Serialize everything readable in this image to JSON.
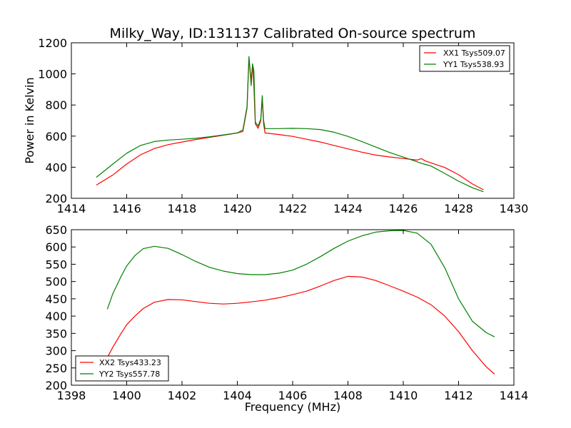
{
  "chart_data": [
    {
      "type": "line",
      "title": "Milky_Way, ID:131137 Calibrated On-source spectrum",
      "xlabel": "",
      "ylabel": "Power in Kelvin",
      "xlim": [
        1414,
        1430
      ],
      "ylim": [
        200,
        1200
      ],
      "xticks": [
        "1414",
        "1416",
        "1418",
        "1420",
        "1422",
        "1424",
        "1426",
        "1428",
        "1430"
      ],
      "yticks": [
        "200",
        "400",
        "600",
        "800",
        "1000",
        "1200"
      ],
      "grid": false,
      "legend": "top-right",
      "series": [
        {
          "name": "XX1 Tsys509.07",
          "color": "#ff0000",
          "x": [
            1414.9,
            1415.5,
            1416.0,
            1416.5,
            1417.0,
            1417.5,
            1418.0,
            1418.5,
            1419.0,
            1419.5,
            1420.0,
            1420.2,
            1420.35,
            1420.42,
            1420.5,
            1420.55,
            1420.6,
            1420.65,
            1420.75,
            1420.85,
            1420.9,
            1420.95,
            1421.0,
            1421.5,
            1422.0,
            1422.5,
            1423.0,
            1423.5,
            1424.0,
            1424.5,
            1425.0,
            1425.5,
            1426.0,
            1426.5,
            1426.65,
            1426.8,
            1427.0,
            1427.5,
            1428.0,
            1428.5,
            1428.9
          ],
          "values": [
            285,
            350,
            420,
            480,
            520,
            545,
            562,
            578,
            592,
            606,
            620,
            630,
            780,
            1100,
            960,
            1060,
            920,
            680,
            650,
            700,
            840,
            680,
            620,
            610,
            598,
            580,
            562,
            540,
            518,
            497,
            478,
            466,
            456,
            446,
            455,
            440,
            428,
            398,
            352,
            292,
            255
          ]
        },
        {
          "name": "YY1 Tsys538.93",
          "color": "#008000",
          "x": [
            1414.9,
            1415.5,
            1416.0,
            1416.5,
            1417.0,
            1417.5,
            1418.0,
            1418.5,
            1419.0,
            1419.5,
            1420.0,
            1420.2,
            1420.35,
            1420.42,
            1420.5,
            1420.55,
            1420.6,
            1420.65,
            1420.75,
            1420.85,
            1420.9,
            1420.95,
            1421.0,
            1421.5,
            1422.0,
            1422.5,
            1423.0,
            1423.5,
            1424.0,
            1424.5,
            1425.0,
            1425.5,
            1426.0,
            1426.5,
            1426.65,
            1426.8,
            1427.0,
            1427.5,
            1428.0,
            1428.5,
            1428.9
          ],
          "values": [
            335,
            420,
            490,
            540,
            565,
            575,
            580,
            586,
            596,
            608,
            620,
            640,
            790,
            1112,
            925,
            1065,
            1020,
            690,
            665,
            710,
            860,
            700,
            648,
            648,
            650,
            648,
            642,
            625,
            598,
            565,
            530,
            495,
            465,
            435,
            425,
            418,
            408,
            360,
            310,
            268,
            242
          ]
        }
      ]
    },
    {
      "type": "line",
      "title": "",
      "xlabel": "Frequency (MHz)",
      "ylabel": "",
      "xlim": [
        1398,
        1414
      ],
      "ylim": [
        200,
        650
      ],
      "xticks": [
        "1398",
        "1400",
        "1402",
        "1404",
        "1406",
        "1408",
        "1410",
        "1412",
        "1414"
      ],
      "yticks": [
        "200",
        "250",
        "300",
        "350",
        "400",
        "450",
        "500",
        "550",
        "600",
        "650"
      ],
      "grid": false,
      "legend": "bottom-left",
      "series": [
        {
          "name": "XX2 Tsys433.23",
          "color": "#ff0000",
          "x": [
            1399.3,
            1399.5,
            1399.8,
            1400.0,
            1400.3,
            1400.6,
            1401.0,
            1401.5,
            1402.0,
            1402.5,
            1403.0,
            1403.5,
            1404.0,
            1404.5,
            1405.0,
            1405.5,
            1406.0,
            1406.5,
            1407.0,
            1407.5,
            1408.0,
            1408.5,
            1409.0,
            1409.5,
            1410.0,
            1410.5,
            1411.0,
            1411.5,
            1412.0,
            1412.5,
            1413.0,
            1413.3
          ],
          "values": [
            280,
            310,
            350,
            375,
            400,
            422,
            440,
            448,
            447,
            442,
            437,
            435,
            437,
            441,
            446,
            453,
            462,
            472,
            487,
            503,
            515,
            513,
            503,
            488,
            472,
            455,
            433,
            400,
            355,
            300,
            253,
            232
          ]
        },
        {
          "name": "YY2 Tsys557.78",
          "color": "#008000",
          "x": [
            1399.3,
            1399.5,
            1399.8,
            1400.0,
            1400.3,
            1400.6,
            1401.0,
            1401.5,
            1402.0,
            1402.5,
            1403.0,
            1403.5,
            1404.0,
            1404.5,
            1405.0,
            1405.5,
            1406.0,
            1406.5,
            1407.0,
            1407.5,
            1408.0,
            1408.5,
            1409.0,
            1409.5,
            1410.0,
            1410.5,
            1411.0,
            1411.5,
            1412.0,
            1412.5,
            1413.0,
            1413.3
          ],
          "values": [
            420,
            465,
            515,
            545,
            575,
            595,
            602,
            596,
            578,
            558,
            541,
            530,
            523,
            520,
            520,
            524,
            533,
            550,
            572,
            596,
            617,
            632,
            643,
            647,
            648,
            640,
            608,
            540,
            450,
            385,
            352,
            340
          ]
        }
      ]
    }
  ]
}
